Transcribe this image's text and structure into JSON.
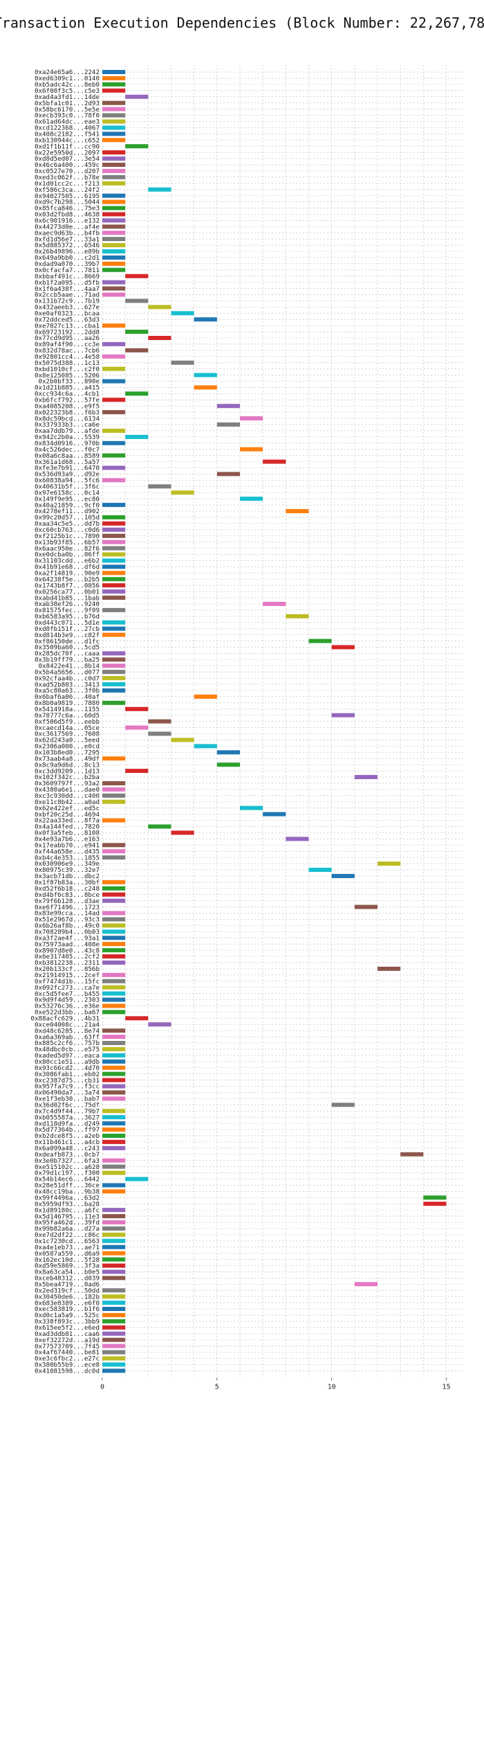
{
  "chart_data": {
    "type": "bar",
    "orientation": "horizontal",
    "title": "Transaction Execution Dependencies (Block Number: 22,267,788)",
    "xlabel": "",
    "ylabel": "",
    "xlim": [
      0,
      15.8
    ],
    "xticks": [
      0,
      5,
      10,
      15
    ],
    "grid": "dashed, both axes",
    "bar_span": 1,
    "palette": [
      "#1f77b4",
      "#ff7f0e",
      "#2ca02c",
      "#d62728",
      "#9467bd",
      "#8c564b",
      "#e377c2",
      "#7f7f7f",
      "#bcbd22",
      "#17becf"
    ],
    "categories": [
      "0xa24e65a6...2242",
      "0xed6309c1...0140",
      "0xb5adc42c...8eb0",
      "0x6f08f3c5...c5e3",
      "0xad4a3fd1...14de",
      "0x5bfa1c01...2d93",
      "0x58bc6170...5e5e",
      "0xecb393c0...78f0",
      "0x61ad64dc...eae3",
      "0xcd122368...4067",
      "0x408c2182...f541",
      "0xb130944c...c652",
      "0xd1f1b11f...cc90",
      "0x22e5950d...2097",
      "0xd8d5ed07...3e54",
      "0x46c6a400...459c",
      "0xc0527e70...d207",
      "0xed3c062f...b78e",
      "0x1d01cc2c...f213",
      "0xf586c3ca...24f2",
      "0x94027505...6195",
      "0xd9c7b298...5044",
      "0x85fca846...75e3",
      "0x03d2fbd8...4638",
      "0x6c901916...e132",
      "0x44273d0e...af4e",
      "0xaec9d63b...b4fb",
      "0xfd1d56e7...33a1",
      "0x5d885372...6546",
      "0x26b49896...e89b",
      "0x649a9bb0...c2d1",
      "0xdad9a070...39b7",
      "0x0cfacfa7...7811",
      "0xbbaf491c...8669",
      "0xb1f2a095...d5fb",
      "0x1f6a438f...4aa7",
      "0x2ccb5aae...71ad",
      "0x131b72c9...7b19",
      "0x432aeeb3...627e",
      "0xe0af0323...bcaa",
      "0x72ddced5...63d3",
      "0xe7827c13...cba1",
      "0x69723192...2dd8",
      "0x77cd9d95...aa26",
      "0x89af4f90...cc3e",
      "0x832d78ac...7cb6",
      "0x92801cc4...4e58",
      "0x5075d388...1c13",
      "0xbd1010cf...c2f0",
      "0x8e125085...5206",
      "0x2b0bf33...890e",
      "0x1d21b885...a415",
      "0xcc934c6a...4cb1",
      "0xb6fcf792...57fe",
      "0xa4085208...e9f5",
      "0x022323b8...f6b3",
      "0x8dc59bcd...6134",
      "0x337933b3...ca6e",
      "0xaa7ddb79...afde",
      "0x942c2b0a...5539",
      "0x834d0916...970b",
      "0x4c526dec...f0c7",
      "0x08a6c8aa...8589",
      "0x361a1d68...5a57",
      "0xfe3e7b91...6470",
      "0x536d93a9...d92e",
      "0x60838a94...5fc6",
      "0x40631b5f...3f6c",
      "0x97e6158c...0c14",
      "0x149f9e95...ec80",
      "0x40a21859...9cf0",
      "0x4278ef11...d902",
      "0x99c20d57...105d",
      "0xaa34c5e5...dd7b",
      "0xc60cb763...c0d6",
      "0xf2125b1c...7890",
      "0x13b93f85...6b57",
      "0x6aac950e...82f6",
      "0xe0dcba0b...06ff",
      "0x31103cdd...e6b2",
      "0x41b91e68...df6d",
      "0xa2f14819...90e9",
      "0x64238f5e...b2b5",
      "0x1743b8f7...0856",
      "0x0256ca77...0b01",
      "0xabd41b85...1bab",
      "0xab38ef26...9240",
      "0x81575fec...9f09",
      "0xb6583a95...b76d",
      "0xd443c071...5d1e",
      "0xd8fb151f...27cb",
      "0xd814b3e9...c82f",
      "0xf86150de...d1fc",
      "0x3509ba60...5cd5",
      "0x285dc70f...caaa",
      "0x3b19ff79...ba25",
      "0x8422e41...8b14",
      "0x5b4a5656...d077",
      "0x92cfaa4b...c0d7",
      "0xad52b803...3413",
      "0xa5c80a63...3f0b",
      "0x6baf6a06...40af",
      "0x8b0a9819...7880",
      "0x5414918a...1155",
      "0x78777c6a...60d5",
      "0xf506d5f9...eebb",
      "0xcaecd14a...05ce",
      "0xc3617569...7608",
      "0x62d243a0...5eed",
      "0x2306a000...e0cd",
      "0x103b8ed0...7295",
      "0x73aab4a8...49df",
      "0x8c9a9d6d...8c13",
      "0xc3dd9209...1d13",
      "0x102f342c...b2ba",
      "0x3609797f...93a2",
      "0x4380a6e1...dae0",
      "0xc3c930dd...c400",
      "0xe11c8b42...a0ad",
      "0x62e422ef...ed5c",
      "0xbf20c25d...4694",
      "0x22aa33ed...8f7a",
      "0x4a144fed...7820",
      "0x0f3a5feb...8108",
      "0x4e93a7b6...e163",
      "0x17eabb70...e941",
      "0xf44a658e...d435",
      "0xb4c4e353...1855",
      "0x030906e9...349e",
      "0x80975c39...32e7",
      "0x3acb71db...dbc2",
      "0x1f87b83a...30bf",
      "0xd52f6b18...c248",
      "0xd4bf6c83...8bce",
      "0x79f6b128...d3ae",
      "0xe6f71496...1723",
      "0x83e99cca...14ad",
      "0x51e2967d...93c3",
      "0x6b26af8b...49c0",
      "0x708289b4...0b03",
      "0xa3f2ae4f...93a1",
      "0x75973aad...408e",
      "0x8907d8e0...43c8",
      "0x6e317405...2cf2",
      "0xb3812238...2311",
      "0x20b133cf...856b",
      "0x21914915...2cef",
      "0xf7474d1b...15fc",
      "0x092fc273...ca7e",
      "0xc5d5fee7...b455",
      "0x9d9f4d59...2303",
      "0x53276c36...e36e",
      "0xe522d3bb...ba67",
      "0x88acfc629...4b31",
      "0xce04008c...21a4",
      "0xd48c6285...8e74",
      "0xa6a369ab...63ff",
      "0x885c2cf6...757b",
      "0x48dbc0cb...e575",
      "0xaded5d97...eaca",
      "0x80cc1e51...a9db",
      "0x93c66cd2...4d70",
      "0x3086fab1...eb02",
      "0xc2387d75...cb31",
      "0x957fa7c9...f3cc",
      "0x06490da7...3a74",
      "0xe1f3eb30...bab7",
      "0x36d02f6c...75df",
      "0x7c4d9f44...79b7",
      "0xb055587a...3627",
      "0xd118d9fa...d249",
      "0x5d77364b...ff97",
      "0xb2dce8f5...a2eb",
      "0x11b461c1...a4cb",
      "0x6a099a48...c243",
      "0xdeafb873...0cb7",
      "0x3e0b7327...6fa3",
      "0xe515102c...a628",
      "0x79d1c197...f300",
      "0x54b14ec6...6442",
      "0x28e51dff...36ce",
      "0x48cc19ba...9b38",
      "0x99f4496a...63d2",
      "0x5959df93...ba28",
      "0x1d89180c...a6fc",
      "0x5d146795...11e3",
      "0x95fa462d...39fd",
      "0x99b82a6a...d27a",
      "0xe7d2df22...c86c",
      "0x1c7230cd...6563",
      "0xa4e1eb73...ae71",
      "0x0587a559...d6a9",
      "0x162ec10d...5f28",
      "0xd59e5869...3f3a",
      "0x8a63ca54...b0e5",
      "0xceb48312...d039",
      "0x5bea4719...0ad6",
      "0x2ed319cf...50dd",
      "0x30450de6...182b",
      "0x683e8389...e6f0",
      "0xec583819...b1f6",
      "0xd0c1a5a9...525c",
      "0x338f893c...3bb9",
      "0x615ee5f2...e6ed",
      "0xad3ddb81...caa6",
      "0xef32272d...a19d",
      "0x77573709...7f45",
      "0x4af67440...be81",
      "0xe3c6fbc2...e27c",
      "0x380b55b9...ece8",
      "0x41081598...dc0d"
    ],
    "values": [
      0,
      0,
      0,
      0,
      1,
      0,
      0,
      0,
      0,
      0,
      0,
      0,
      1,
      0,
      0,
      0,
      0,
      0,
      0,
      2,
      0,
      0,
      0,
      0,
      0,
      0,
      0,
      0,
      0,
      0,
      0,
      0,
      0,
      1,
      0,
      0,
      0,
      1,
      2,
      3,
      4,
      0,
      1,
      2,
      0,
      1,
      0,
      3,
      0,
      4,
      0,
      4,
      1,
      0,
      5,
      0,
      6,
      5,
      0,
      1,
      0,
      6,
      0,
      7,
      0,
      5,
      0,
      2,
      3,
      6,
      0,
      8,
      0,
      0,
      0,
      0,
      0,
      0,
      0,
      0,
      0,
      0,
      0,
      0,
      0,
      0,
      7,
      0,
      8,
      0,
      0,
      0,
      9,
      10,
      0,
      0,
      0,
      0,
      0,
      0,
      0,
      4,
      0,
      1,
      10,
      2,
      1,
      2,
      3,
      4,
      5,
      0,
      5,
      1,
      11,
      0,
      0,
      0,
      0,
      6,
      7,
      0,
      2,
      3,
      8,
      0,
      0,
      0,
      12,
      9,
      10,
      0,
      0,
      0,
      0,
      11,
      0,
      0,
      0,
      0,
      0,
      0,
      0,
      0,
      0,
      12,
      0,
      0,
      0,
      0,
      0,
      0,
      0,
      1,
      2,
      0,
      0,
      0,
      0,
      0,
      0,
      0,
      0,
      0,
      0,
      0,
      0,
      10,
      0,
      0,
      0,
      0,
      0,
      0,
      0,
      13,
      0,
      0,
      0,
      1,
      0,
      0,
      14,
      14,
      0,
      0,
      0,
      0,
      0,
      0,
      0,
      0,
      0,
      0,
      0,
      0,
      11,
      0,
      0,
      0,
      0,
      0,
      0,
      0,
      0,
      0,
      0,
      0,
      0,
      0,
      0
    ],
    "value_colors": [
      "#1f77b4",
      "#ff7f0e",
      "#2ca02c",
      "#d62728",
      "#9467bd",
      "#8c564b",
      "#e377c2",
      "#7f7f7f",
      "#bcbd22",
      "#17becf",
      "#1f77b4",
      "#ff7f0e",
      "#2ca02c",
      "#d62728",
      "#9467bd",
      "#8c564b",
      "#e377c2",
      "#7f7f7f",
      "#bcbd22",
      "#17becf",
      "#1f77b4",
      "#ff7f0e",
      "#2ca02c",
      "#d62728",
      "#9467bd",
      "#8c564b",
      "#e377c2",
      "#7f7f7f",
      "#bcbd22",
      "#17becf",
      "#1f77b4",
      "#ff7f0e",
      "#2ca02c",
      "#d62728",
      "#9467bd",
      "#8c564b",
      "#e377c2",
      "#7f7f7f",
      "#bcbd22",
      "#17becf",
      "#1f77b4",
      "#ff7f0e",
      "#2ca02c",
      "#d62728",
      "#9467bd",
      "#8c564b",
      "#e377c2",
      "#7f7f7f",
      "#bcbd22",
      "#17becf",
      "#1f77b4",
      "#ff7f0e",
      "#2ca02c",
      "#d62728",
      "#9467bd",
      "#8c564b",
      "#e377c2",
      "#7f7f7f",
      "#bcbd22",
      "#17becf",
      "#1f77b4",
      "#ff7f0e",
      "#2ca02c",
      "#d62728",
      "#9467bd",
      "#8c564b",
      "#e377c2",
      "#7f7f7f",
      "#bcbd22",
      "#17becf",
      "#1f77b4",
      "#ff7f0e",
      "#2ca02c",
      "#d62728",
      "#9467bd",
      "#8c564b",
      "#e377c2",
      "#7f7f7f",
      "#bcbd22",
      "#17becf",
      "#1f77b4",
      "#ff7f0e",
      "#2ca02c",
      "#d62728",
      "#9467bd",
      "#8c564b",
      "#e377c2",
      "#7f7f7f",
      "#bcbd22",
      "#17becf",
      "#1f77b4",
      "#ff7f0e",
      "#2ca02c",
      "#d62728",
      "#9467bd",
      "#8c564b",
      "#e377c2",
      "#7f7f7f",
      "#bcbd22",
      "#17becf",
      "#1f77b4",
      "#ff7f0e",
      "#2ca02c",
      "#d62728",
      "#9467bd",
      "#8c564b",
      "#e377c2",
      "#7f7f7f",
      "#bcbd22",
      "#17becf",
      "#1f77b4",
      "#ff7f0e",
      "#2ca02c",
      "#d62728",
      "#9467bd",
      "#8c564b",
      "#e377c2",
      "#7f7f7f",
      "#bcbd22",
      "#17becf",
      "#1f77b4",
      "#ff7f0e",
      "#2ca02c",
      "#d62728",
      "#9467bd",
      "#8c564b",
      "#e377c2",
      "#7f7f7f",
      "#bcbd22",
      "#17becf",
      "#1f77b4",
      "#ff7f0e",
      "#2ca02c",
      "#d62728",
      "#9467bd",
      "#8c564b",
      "#e377c2",
      "#7f7f7f",
      "#bcbd22",
      "#17becf",
      "#1f77b4",
      "#ff7f0e",
      "#2ca02c",
      "#d62728",
      "#9467bd",
      "#8c564b",
      "#e377c2",
      "#7f7f7f",
      "#bcbd22",
      "#17becf",
      "#1f77b4",
      "#ff7f0e",
      "#2ca02c",
      "#d62728",
      "#9467bd",
      "#8c564b",
      "#e377c2",
      "#7f7f7f",
      "#bcbd22",
      "#17becf",
      "#1f77b4",
      "#ff7f0e",
      "#2ca02c",
      "#d62728",
      "#9467bd",
      "#8c564b",
      "#e377c2",
      "#7f7f7f",
      "#bcbd22",
      "#17becf",
      "#1f77b4",
      "#ff7f0e",
      "#2ca02c",
      "#d62728",
      "#9467bd",
      "#8c564b",
      "#e377c2",
      "#7f7f7f",
      "#bcbd22",
      "#17becf",
      "#1f77b4",
      "#ff7f0e",
      "#2ca02c",
      "#d62728",
      "#9467bd",
      "#8c564b",
      "#e377c2",
      "#7f7f7f",
      "#bcbd22",
      "#17becf",
      "#1f77b4",
      "#ff7f0e",
      "#2ca02c",
      "#d62728",
      "#9467bd",
      "#8c564b",
      "#e377c2",
      "#7f7f7f",
      "#bcbd22",
      "#17becf",
      "#1f77b4",
      "#ff7f0e",
      "#2ca02c",
      "#d62728",
      "#9467bd",
      "#8c564b",
      "#e377c2",
      "#7f7f7f",
      "#bcbd22",
      "#17becf",
      "#1f77b4"
    ]
  }
}
